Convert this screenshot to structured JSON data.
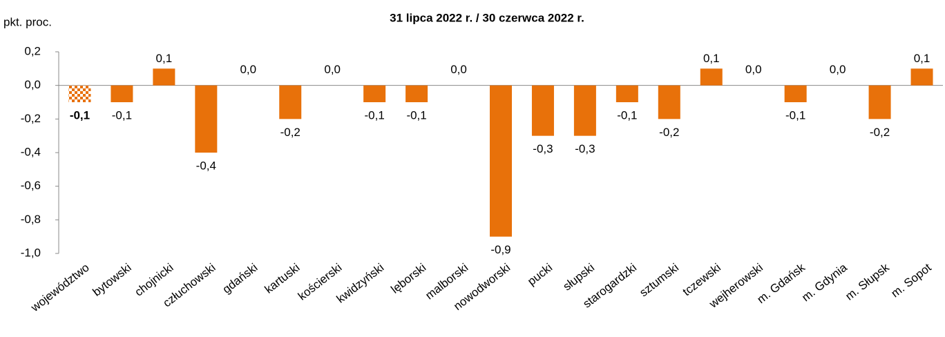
{
  "chart_data": {
    "type": "bar",
    "title": "31 lipca 2022 r. / 30 czerwca 2022 r.",
    "y_label": "pkt. proc.",
    "categories": [
      "województwo",
      "bytowski",
      "chojnicki",
      "człuchowski",
      "gdański",
      "kartuski",
      "kościerski",
      "kwidzyński",
      "lęborski",
      "malborski",
      "nowodworski",
      "pucki",
      "słupski",
      "starogardzki",
      "sztumski",
      "tczewski",
      "wejherowski",
      "m. Gdańsk",
      "m. Gdynia",
      "m. Słupsk",
      "m. Sopot"
    ],
    "values": [
      -0.1,
      -0.1,
      0.1,
      -0.4,
      0.0,
      -0.2,
      0.0,
      -0.1,
      -0.1,
      0.0,
      -0.9,
      -0.3,
      -0.3,
      -0.1,
      -0.2,
      0.1,
      0.0,
      -0.1,
      0.0,
      -0.2,
      0.1
    ],
    "value_labels": [
      "-0,1",
      "-0,1",
      "0,1",
      "-0,4",
      "0,0",
      "-0,2",
      "0,0",
      "-0,1",
      "-0,1",
      "0,0",
      "-0,9",
      "-0,3",
      "-0,3",
      "-0,1",
      "-0,2",
      "0,1",
      "0,0",
      "-0,1",
      "0,0",
      "-0,2",
      "0,1"
    ],
    "color": "#e8710a",
    "highlight_index": 0,
    "ylim": [
      -1.0,
      0.2
    ],
    "yticks": [
      {
        "value": -1.0,
        "label": "-1,0"
      },
      {
        "value": -0.8,
        "label": "-0,8"
      },
      {
        "value": -0.6,
        "label": "-0,6"
      },
      {
        "value": -0.4,
        "label": "-0,4"
      },
      {
        "value": -0.2,
        "label": "-0,2"
      },
      {
        "value": 0.0,
        "label": "0,0"
      },
      {
        "value": 0.2,
        "label": "0,2"
      }
    ],
    "grid": false
  }
}
